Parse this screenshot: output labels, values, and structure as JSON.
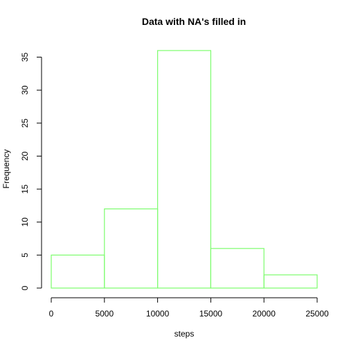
{
  "chart_data": {
    "type": "bar",
    "title": "Data with NA's filled in",
    "xlabel": "steps",
    "ylabel": "Frequency",
    "bins": [
      {
        "start": 0,
        "end": 5000,
        "count": 5
      },
      {
        "start": 5000,
        "end": 10000,
        "count": 12
      },
      {
        "start": 10000,
        "end": 15000,
        "count": 36
      },
      {
        "start": 15000,
        "end": 20000,
        "count": 6
      },
      {
        "start": 20000,
        "end": 25000,
        "count": 2
      }
    ],
    "xlim": [
      0,
      25000
    ],
    "ylim": [
      0,
      36
    ],
    "xticks": [
      0,
      5000,
      10000,
      15000,
      20000,
      25000
    ],
    "yticks": [
      0,
      5,
      10,
      15,
      20,
      25,
      30,
      35
    ],
    "bar_color": "#7CFC6C",
    "grid": false,
    "legend": "none"
  }
}
